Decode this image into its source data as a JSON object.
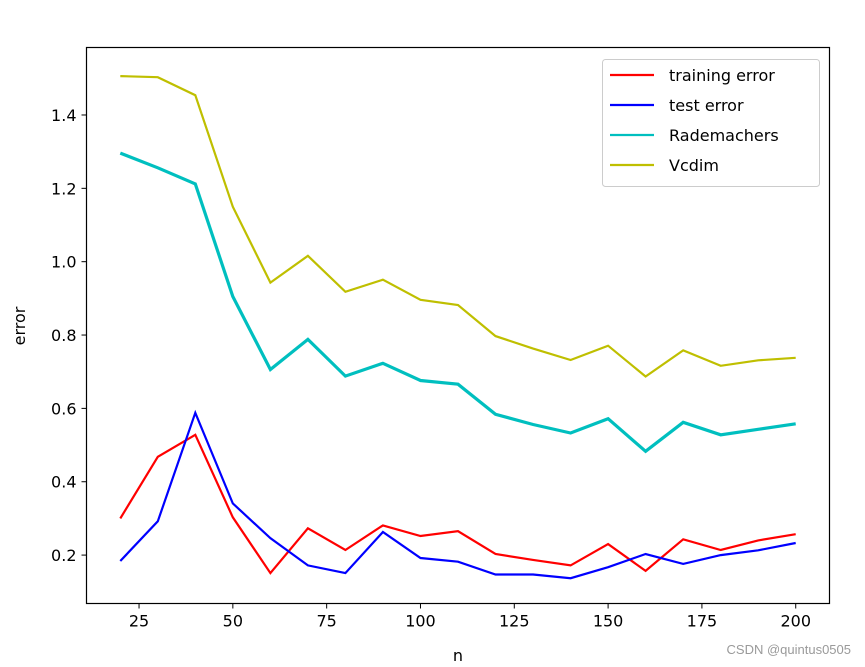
{
  "chart_data": {
    "type": "line",
    "title": "",
    "xlabel": "n",
    "ylabel": "error",
    "xlim": [
      11,
      209
    ],
    "ylim": [
      0.068,
      1.584
    ],
    "xticks": [
      25,
      50,
      75,
      100,
      125,
      150,
      175,
      200
    ],
    "yticks": [
      0.2,
      0.4,
      0.6,
      0.8,
      1.0,
      1.2,
      1.4
    ],
    "ytick_labels": [
      "0.2",
      "0.4",
      "0.6",
      "0.8",
      "1.0",
      "1.2",
      "1.4"
    ],
    "grid": false,
    "legend_position": "upper right",
    "x": [
      20,
      30,
      40,
      50,
      60,
      70,
      80,
      90,
      100,
      110,
      120,
      130,
      140,
      150,
      160,
      170,
      180,
      190,
      200
    ],
    "series": [
      {
        "name": "training error",
        "color": "#ff0000",
        "values": [
          0.3,
          0.468,
          0.528,
          0.303,
          0.151,
          0.273,
          0.214,
          0.281,
          0.252,
          0.265,
          0.203,
          0.187,
          0.172,
          0.23,
          0.157,
          0.243,
          0.214,
          0.24,
          0.257
        ]
      },
      {
        "name": "test error",
        "color": "#0000ff",
        "values": [
          0.184,
          0.292,
          0.588,
          0.341,
          0.246,
          0.172,
          0.151,
          0.263,
          0.192,
          0.182,
          0.147,
          0.147,
          0.137,
          0.167,
          0.203,
          0.176,
          0.2,
          0.213,
          0.233
        ]
      },
      {
        "name": "Rademachers",
        "color": "#00bfbf",
        "values": [
          1.296,
          1.256,
          1.212,
          0.905,
          0.706,
          0.788,
          0.688,
          0.723,
          0.676,
          0.666,
          0.584,
          0.556,
          0.533,
          0.572,
          0.483,
          0.562,
          0.528,
          0.543,
          0.558
        ]
      },
      {
        "name": "Vcdim",
        "color": "#bfbf00",
        "values": [
          1.506,
          1.503,
          1.454,
          1.15,
          0.943,
          1.016,
          0.918,
          0.951,
          0.896,
          0.882,
          0.797,
          0.763,
          0.732,
          0.771,
          0.687,
          0.758,
          0.716,
          0.731,
          0.738
        ]
      }
    ]
  },
  "watermark": "CSDN @quintus0505"
}
